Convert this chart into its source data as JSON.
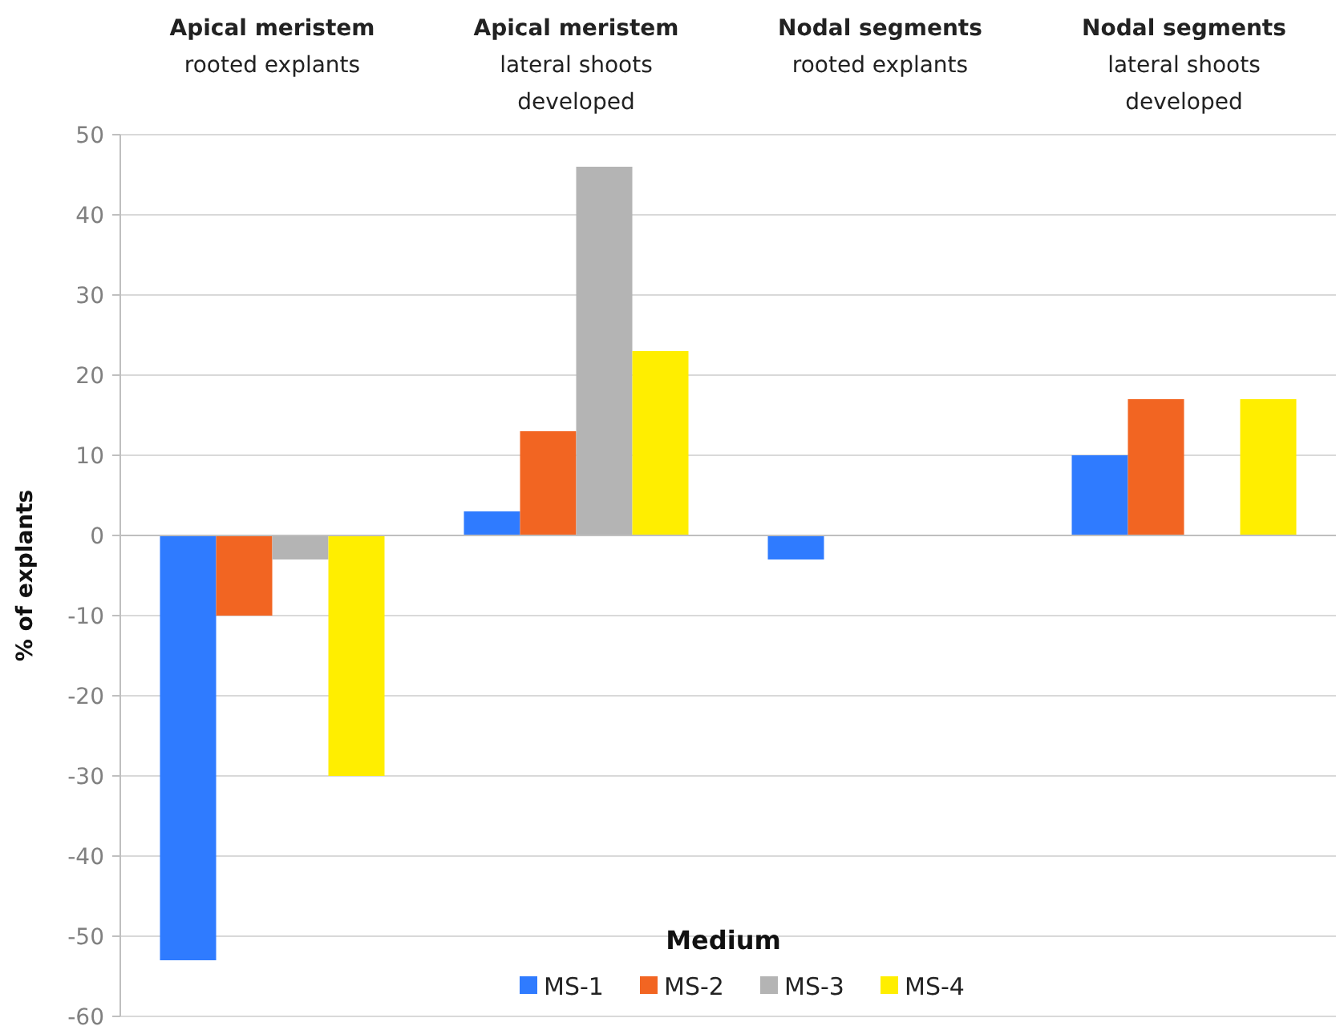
{
  "chart_data": {
    "type": "bar",
    "categories": [
      "Apical meristem\nrooted explants",
      "Apical meristem\nlateral shoots\ndeveloped",
      "Nodal segments\nrooted explants",
      "Nodal segments\nlateral shoots\ndeveloped"
    ],
    "series": [
      {
        "name": "MS-1",
        "color": "#2f7bff",
        "values": [
          -53,
          3,
          -3,
          10
        ]
      },
      {
        "name": "MS-2",
        "color": "#f26522",
        "values": [
          -10,
          13,
          0,
          17
        ]
      },
      {
        "name": "MS-3",
        "color": "#b4b4b4",
        "values": [
          -3,
          46,
          0,
          0
        ]
      },
      {
        "name": "MS-4",
        "color": "#ffee00",
        "values": [
          -30,
          23,
          0,
          17
        ]
      }
    ],
    "ylabel": "% of explants",
    "legend_title": "Medium",
    "legend": "bottom",
    "grid": "y",
    "ylim": [
      -60,
      50
    ],
    "yticks": [
      -60,
      -50,
      -40,
      -30,
      -20,
      -10,
      0,
      10,
      20,
      30,
      40,
      50
    ]
  }
}
